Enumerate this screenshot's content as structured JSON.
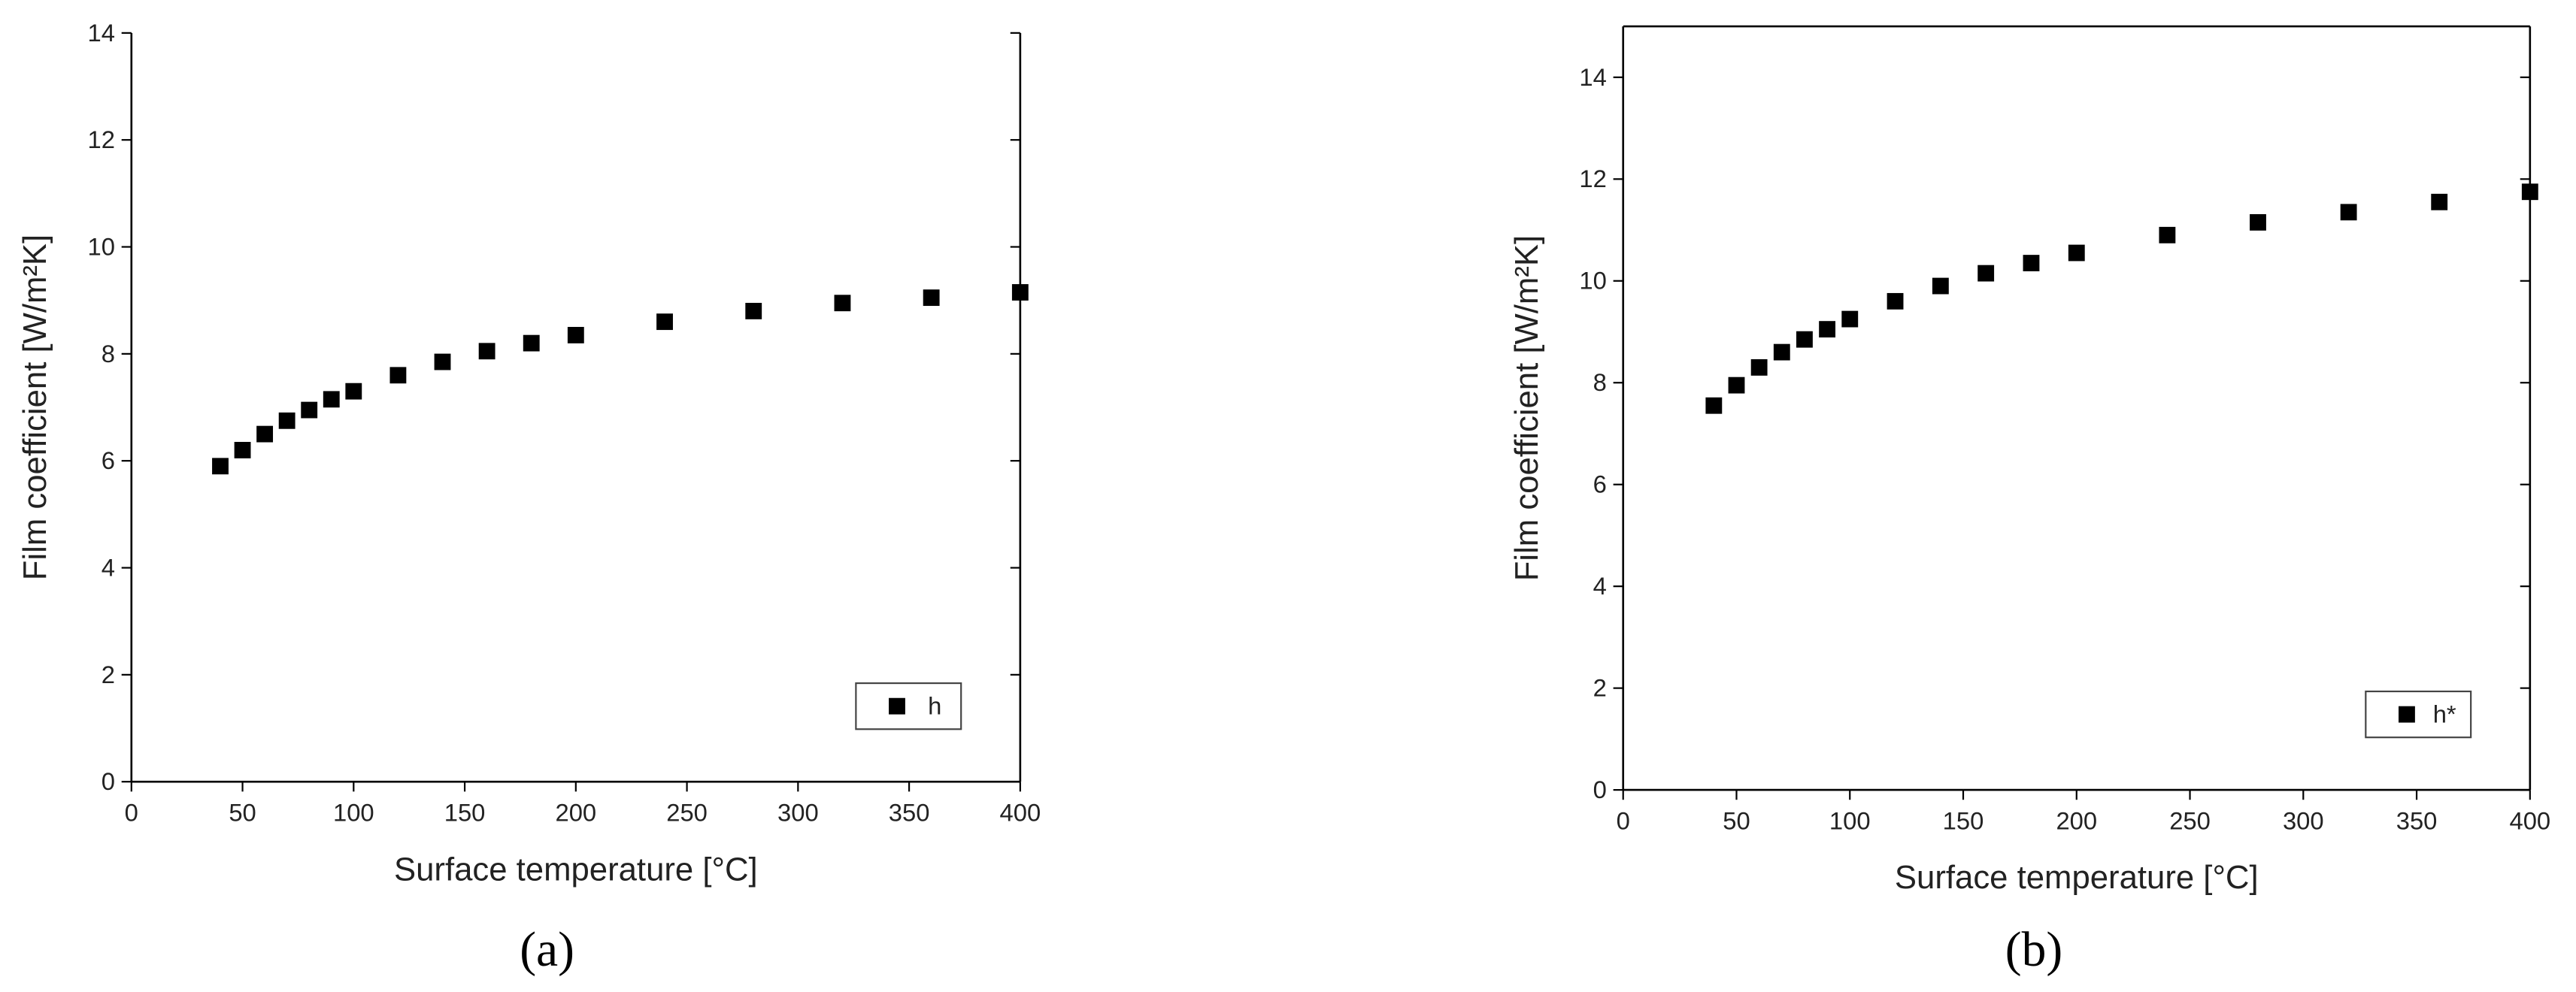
{
  "chart_data": [
    {
      "type": "scatter",
      "caption": "(a)",
      "xlabel": "Surface temperature [°C]",
      "ylabel": "Film coefficient [W/m²K]",
      "x": [
        40,
        50,
        60,
        70,
        80,
        90,
        100,
        120,
        140,
        160,
        180,
        200,
        240,
        280,
        320,
        360,
        400
      ],
      "series": [
        {
          "name": "h",
          "color": "#000000",
          "values": [
            5.9,
            6.2,
            6.5,
            6.75,
            6.95,
            7.15,
            7.3,
            7.6,
            7.85,
            8.05,
            8.2,
            8.35,
            8.6,
            8.8,
            8.95,
            9.05,
            9.15
          ]
        }
      ],
      "xlim": [
        0,
        400
      ],
      "ylim": [
        0,
        14
      ],
      "xticks": [
        0,
        50,
        100,
        150,
        200,
        250,
        300,
        350,
        400
      ],
      "yticks": [
        0,
        2,
        4,
        6,
        8,
        10,
        12,
        14
      ],
      "legend": "lower right"
    },
    {
      "type": "scatter",
      "caption": "(b)",
      "xlabel": "Surface temperature [°C]",
      "ylabel": "Film coefficient [W/m²K]",
      "x": [
        40,
        50,
        60,
        70,
        80,
        90,
        100,
        120,
        140,
        160,
        180,
        200,
        240,
        280,
        320,
        360,
        400
      ],
      "series": [
        {
          "name": "h*",
          "color": "#000000",
          "values": [
            7.55,
            7.95,
            8.3,
            8.6,
            8.85,
            9.05,
            9.25,
            9.6,
            9.9,
            10.15,
            10.35,
            10.55,
            10.9,
            11.15,
            11.35,
            11.55,
            11.75
          ]
        }
      ],
      "xlim": [
        0,
        400
      ],
      "ylim": [
        0,
        15
      ],
      "xticks": [
        0,
        50,
        100,
        150,
        200,
        250,
        300,
        350,
        400
      ],
      "yticks": [
        0,
        2,
        4,
        6,
        8,
        10,
        12,
        14
      ],
      "legend": "lower right"
    }
  ]
}
